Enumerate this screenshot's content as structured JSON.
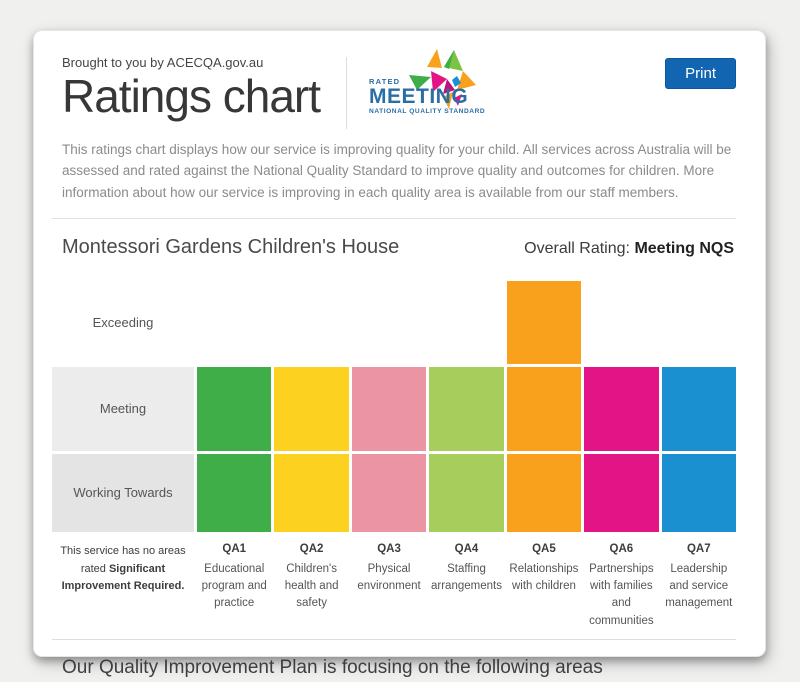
{
  "header": {
    "tagline": "Brought to you by ACECQA.gov.au",
    "title": "Ratings chart",
    "print_label": "Print",
    "print_color": "#1266b1",
    "logo": {
      "rated": "RATED",
      "name": "MEETING",
      "subtitle": "NATIONAL QUALITY STANDARD",
      "text_color": "#2a6ea6"
    }
  },
  "description": "This ratings chart displays how our service is improving quality for your child. All services across Australia will be assessed and rated against the National Quality Standard to improve quality and outcomes for children. More information about how our service is improving in each quality area is available from our staff members.",
  "service": {
    "name": "Montessori Gardens Children's House",
    "overall_rating_label": "Overall Rating:",
    "overall_rating_value": "Meeting NQS"
  },
  "chart_data": {
    "type": "heatmap",
    "title": "National Quality Standard quality area ratings",
    "row_labels": [
      "Exceeding",
      "Meeting",
      "Working Towards"
    ],
    "fill_rule": "each column is filled from Working Towards up to its achieved rating",
    "columns": [
      {
        "id": "QA1",
        "label": "Educational program and practice",
        "rating": "Meeting",
        "color": "#3fae49"
      },
      {
        "id": "QA2",
        "label": "Children's health and safety",
        "rating": "Meeting",
        "color": "#fdd11f"
      },
      {
        "id": "QA3",
        "label": "Physical environment",
        "rating": "Meeting",
        "color": "#ea94a4"
      },
      {
        "id": "QA4",
        "label": "Staffing arrangements",
        "rating": "Meeting",
        "color": "#a7ce5d"
      },
      {
        "id": "QA5",
        "label": "Relationships with children",
        "rating": "Exceeding",
        "color": "#f9a11d"
      },
      {
        "id": "QA6",
        "label": "Partnerships with families and communities",
        "rating": "Meeting",
        "color": "#e31485"
      },
      {
        "id": "QA7",
        "label": "Leadership and service management",
        "rating": "Meeting",
        "color": "#1a90d0"
      }
    ],
    "footnote": {
      "normal": "This service has no areas rated",
      "bold": "Significant Improvement Required."
    },
    "legend_position": "none",
    "grid": false
  },
  "footer": {
    "heading": "Our Quality Improvement Plan is focusing on the following areas"
  }
}
